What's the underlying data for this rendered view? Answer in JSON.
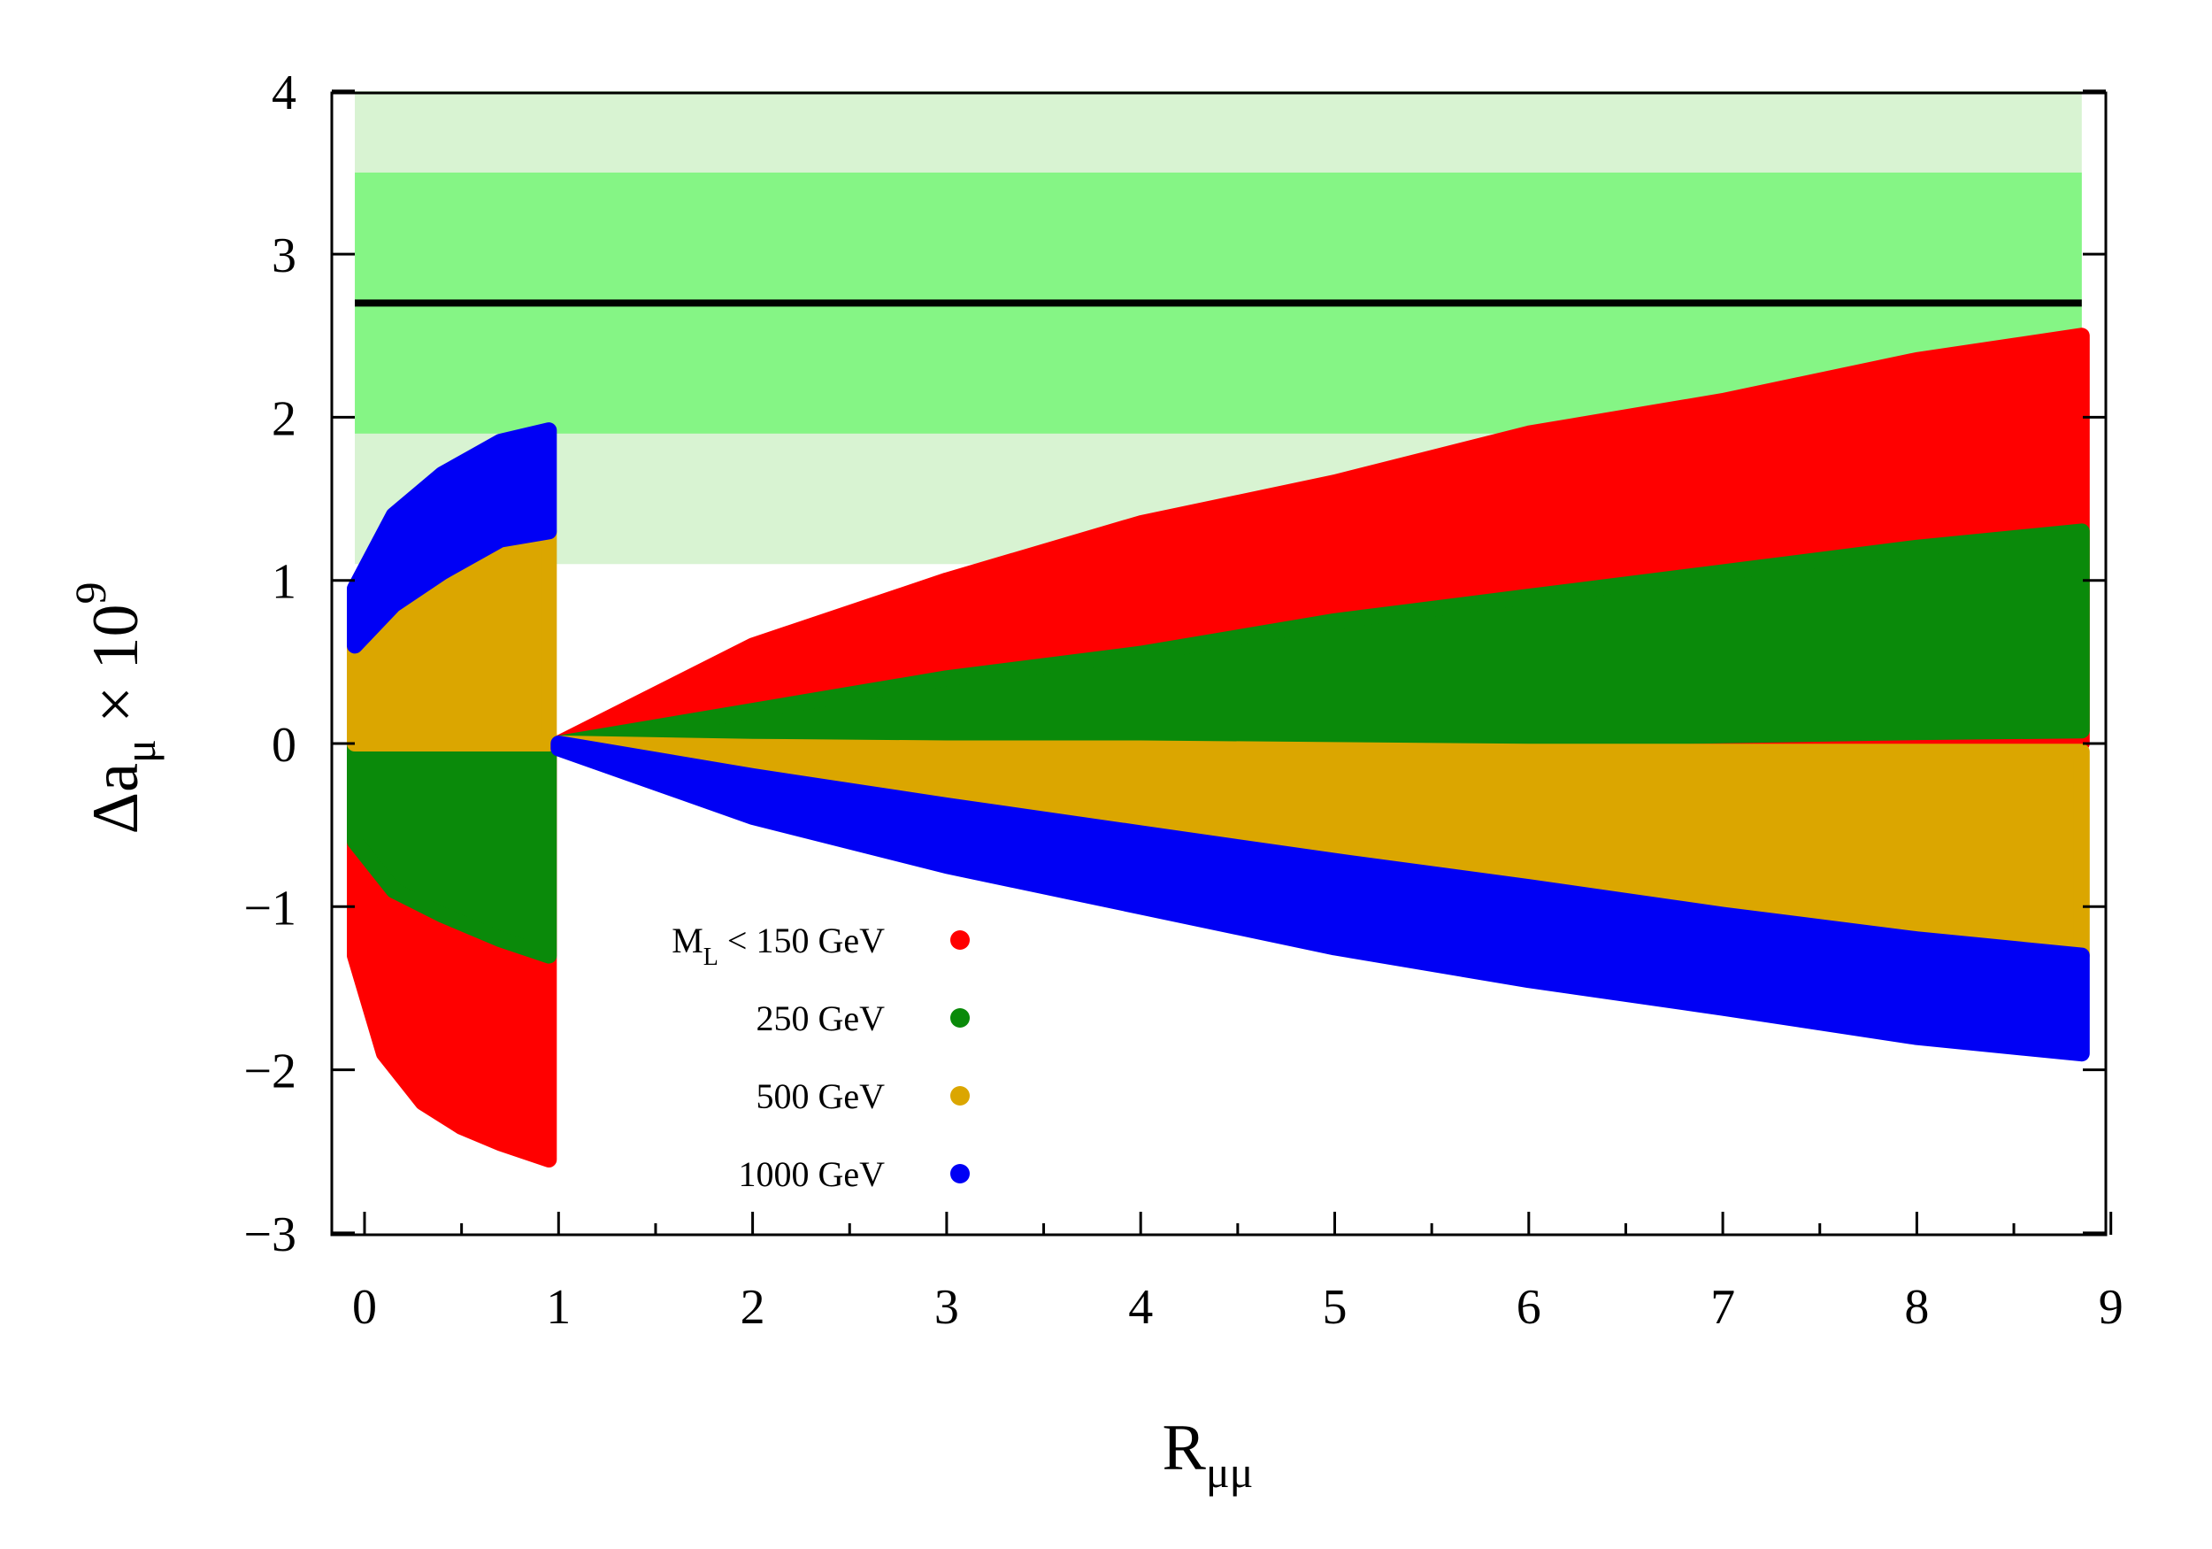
{
  "chart_data": {
    "type": "scatter",
    "xlabel": {
      "main": "R",
      "sub": "μμ"
    },
    "ylabel": {
      "main": "Δa",
      "sub": "μ",
      "rest": " × 10",
      "sup": "9"
    },
    "xlim": [
      -0.15,
      9
    ],
    "ylim": [
      -3,
      4
    ],
    "xticks": [
      "0",
      "1",
      "2",
      "3",
      "4",
      "5",
      "6",
      "7",
      "8",
      "9"
    ],
    "yticks": [
      "−3",
      "−1",
      "0",
      "1",
      "2",
      "3",
      "4"
    ],
    "ytick_values": [
      -3,
      -1,
      0,
      1,
      2,
      3,
      4
    ],
    "grid": false,
    "legend_position": "lower-center",
    "bands": [
      {
        "name": "outer",
        "y": [
          1.1,
          4.0
        ],
        "x": [
          -0.05,
          8.85
        ],
        "color": "#d8f3d2"
      },
      {
        "name": "inner",
        "y": [
          1.9,
          3.5
        ],
        "x": [
          -0.05,
          8.85
        ],
        "color": "#85f585"
      }
    ],
    "central_line": {
      "y": 2.7,
      "x": [
        -0.05,
        8.85
      ],
      "color": "#000000"
    },
    "series": [
      {
        "name": "M_L < 150 GeV",
        "label_main": "M",
        "label_sub": "L",
        "label_rest": " < 150 GeV",
        "color": "#ff0000",
        "regions": [
          {
            "x": [
              -0.05,
              0.1,
              0.3,
              0.5,
              0.7,
              0.95
            ],
            "ymin": [
              -1.3,
              -1.9,
              -2.2,
              -2.35,
              -2.45,
              -2.55
            ],
            "ymax": [
              -0.6,
              -0.85,
              -0.75,
              -0.6,
              -0.35,
              -0.05
            ]
          },
          {
            "x": [
              1.0,
              2.0,
              3.0,
              4.0,
              5.0,
              6.0,
              7.0,
              8.0,
              8.85
            ],
            "ymin": [
              0,
              0,
              0,
              0,
              0,
              0,
              0,
              0,
              0
            ],
            "ymax": [
              0,
              0.6,
              1.0,
              1.35,
              1.6,
              1.9,
              2.1,
              2.35,
              2.5
            ]
          }
        ]
      },
      {
        "name": "250 GeV",
        "label_main": "250 GeV",
        "label_sub": "",
        "label_rest": "",
        "color": "#0a8a0a",
        "regions": [
          {
            "x": [
              -0.05,
              0.15,
              0.4,
              0.7,
              0.95
            ],
            "ymin": [
              -0.6,
              -0.9,
              -1.05,
              -1.2,
              -1.3
            ],
            "ymax": [
              0.05,
              0.05,
              0.05,
              0.05,
              0.05
            ]
          },
          {
            "x": [
              1.0,
              2.0,
              3.0,
              4.0,
              5.0,
              6.0,
              7.0,
              8.0,
              8.85
            ],
            "ymin": [
              0,
              0,
              0,
              0,
              0.02,
              0.03,
              0.05,
              0.07,
              0.08
            ],
            "ymax": [
              0,
              0.2,
              0.4,
              0.55,
              0.75,
              0.9,
              1.05,
              1.2,
              1.3
            ]
          }
        ]
      },
      {
        "name": "500 GeV",
        "label_main": "500 GeV",
        "label_sub": "",
        "label_rest": "",
        "color": "#dba600",
        "regions": [
          {
            "x": [
              -0.05,
              0.15,
              0.4,
              0.7,
              0.95
            ],
            "ymin": [
              0,
              0,
              0,
              0,
              0
            ],
            "ymax": [
              0.6,
              0.85,
              1.05,
              1.25,
              1.3
            ]
          },
          {
            "x": [
              1.0,
              2.0,
              3.0,
              4.0,
              5.0,
              6.0,
              7.0,
              8.0,
              8.85
            ],
            "ymin": [
              0,
              -0.2,
              -0.38,
              -0.55,
              -0.72,
              -0.88,
              -1.05,
              -1.2,
              -1.3
            ],
            "ymax": [
              0,
              -0.02,
              -0.03,
              -0.03,
              -0.04,
              -0.05,
              -0.05,
              -0.05,
              -0.05
            ]
          }
        ]
      },
      {
        "name": "1000 GeV",
        "label_main": "1000 GeV",
        "label_sub": "",
        "label_rest": "",
        "color": "#0000f5",
        "regions": [
          {
            "x": [
              -0.05,
              0.15,
              0.4,
              0.7,
              0.95
            ],
            "ymin": [
              0.6,
              0.85,
              1.05,
              1.25,
              1.3
            ],
            "ymax": [
              0.95,
              1.4,
              1.65,
              1.85,
              1.92
            ]
          },
          {
            "x": [
              1.0,
              2.0,
              3.0,
              4.0,
              5.0,
              6.0,
              7.0,
              8.0,
              8.85
            ],
            "ymin": [
              -0.03,
              -0.45,
              -0.75,
              -1.0,
              -1.25,
              -1.45,
              -1.62,
              -1.8,
              -1.9
            ],
            "ymax": [
              0,
              -0.2,
              -0.38,
              -0.55,
              -0.72,
              -0.88,
              -1.05,
              -1.2,
              -1.3
            ]
          }
        ]
      }
    ]
  }
}
